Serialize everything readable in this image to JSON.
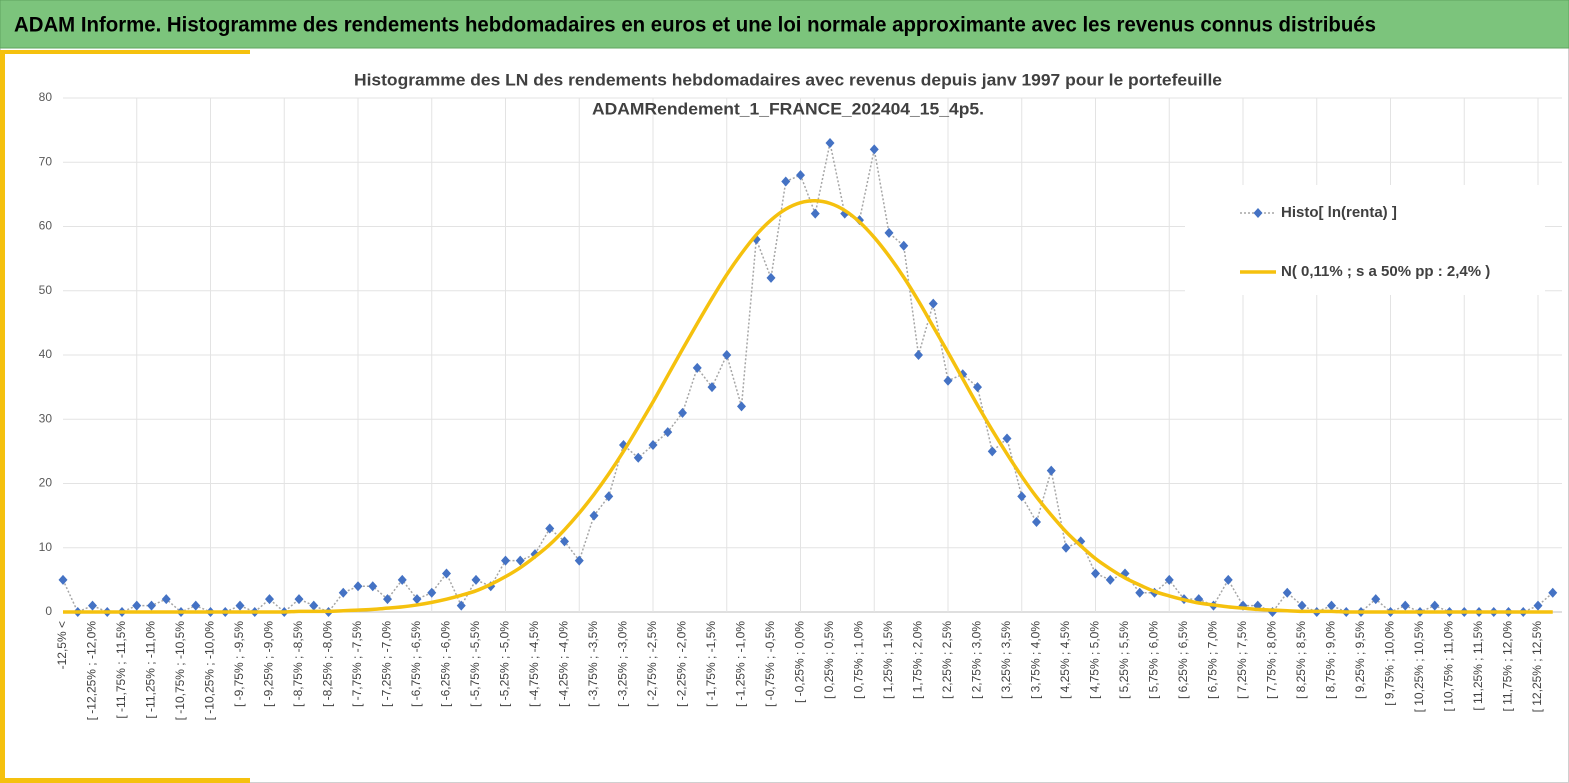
{
  "header": {
    "title": "ADAM Informe. Histogramme des rendements hebdomadaires en euros et une loi normale approximante avec les revenus connus distribués"
  },
  "chart_data": {
    "type": "line",
    "title": [
      "Histogramme des LN des rendements hebdomadaires avec revenus depuis janv 1997 pour le portefeuille",
      "ADAMRendement_1_FRANCE_202404_15_4p5."
    ],
    "categories": [
      "-12,5% <",
      null,
      "[ -12,25% ; -12,0%",
      null,
      "[ -11,75% ; -11,5%",
      null,
      "[ -11,25% ; -11,0%",
      null,
      "[ -10,75% ; -10,5%",
      null,
      "[ -10,25% ; -10,0%",
      null,
      "[ -9,75% ; -9,5%",
      null,
      "[ -9,25% ; -9,0%",
      null,
      "[ -8,75% ; -8,5%",
      null,
      "[ -8,25% ; -8,0%",
      null,
      "[ -7,75% ; -7,5%",
      null,
      "[ -7,25% ; -7,0%",
      null,
      "[ -6,75% ; -6,5%",
      null,
      "[ -6,25% ; -6,0%",
      null,
      "[ -5,75% ; -5,5%",
      null,
      "[ -5,25% ; -5,0%",
      null,
      "[ -4,75% ; -4,5%",
      null,
      "[ -4,25% ; -4,0%",
      null,
      "[ -3,75% ; -3,5%",
      null,
      "[ -3,25% ; -3,0%",
      null,
      "[ -2,75% ; -2,5%",
      null,
      "[ -2,25% ; -2,0%",
      null,
      "[ -1,75% ; -1,5%",
      null,
      "[ -1,25% ; -1,0%",
      null,
      "[ -0,75% ; -0,5%",
      null,
      "[ -0,25% ; 0,0%",
      null,
      "[ 0,25% ; 0,5%",
      null,
      "[ 0,75% ; 1,0%",
      null,
      "[ 1,25% ; 1,5%",
      null,
      "[ 1,75% ; 2,0%",
      null,
      "[ 2,25% ; 2,5%",
      null,
      "[ 2,75% ; 3,0%",
      null,
      "[ 3,25% ; 3,5%",
      null,
      "[ 3,75% ; 4,0%",
      null,
      "[ 4,25% ; 4,5%",
      null,
      "[ 4,75% ; 5,0%",
      null,
      "[ 5,25% ; 5,5%",
      null,
      "[ 5,75% ; 6,0%",
      null,
      "[ 6,25% ; 6,5%",
      null,
      "[ 6,75% ; 7,0%",
      null,
      "[ 7,25% ; 7,5%",
      null,
      "[ 7,75% ; 8,0%",
      null,
      "[ 8,25% ; 8,5%",
      null,
      "[ 8,75% ; 9,0%",
      null,
      "[ 9,25% ; 9,5%",
      null,
      "[ 9,75% ; 10,0%",
      null,
      "[ 10,25% ; 10,5%",
      null,
      "[ 10,75% ; 11,0%",
      null,
      "[ 11,25% ; 11,5%",
      null,
      "[ 11,75% ; 12,0%",
      null,
      "[ 12,25% ; 12,5%",
      null
    ],
    "series": [
      {
        "name": "Histo[ ln(renta) ]",
        "color": "#4472c4",
        "line_color": "#a6a6a6",
        "values": [
          5,
          0,
          1,
          0,
          0,
          1,
          1,
          2,
          0,
          1,
          0,
          0,
          1,
          0,
          2,
          0,
          2,
          1,
          0,
          3,
          4,
          4,
          2,
          5,
          2,
          3,
          6,
          1,
          5,
          4,
          8,
          8,
          9,
          13,
          11,
          8,
          15,
          18,
          26,
          24,
          26,
          28,
          31,
          38,
          35,
          40,
          32,
          58,
          52,
          67,
          68,
          62,
          73,
          62,
          61,
          72,
          59,
          57,
          40,
          48,
          36,
          37,
          35,
          25,
          27,
          18,
          14,
          22,
          10,
          11,
          6,
          5,
          6,
          3,
          3,
          5,
          2,
          2,
          1,
          5,
          1,
          1,
          0,
          3,
          1,
          0,
          1,
          0,
          0,
          2,
          0,
          1,
          0,
          1,
          0,
          0,
          0,
          0,
          0,
          0,
          1,
          3
        ]
      },
      {
        "name": "N( 0,11% ; s a 50% pp : 2,4% )",
        "color": "#f5c10e",
        "smooth": true,
        "values": [
          0,
          0,
          0,
          0,
          0,
          0,
          0,
          0,
          0,
          0,
          0,
          0,
          0,
          0,
          0,
          0,
          0.1,
          0.1,
          0.1,
          0.2,
          0.3,
          0.4,
          0.6,
          0.8,
          1.1,
          1.5,
          2.0,
          2.6,
          3.3,
          4.3,
          5.5,
          6.9,
          8.6,
          10.5,
          12.8,
          15.4,
          18.3,
          21.5,
          25.0,
          28.8,
          32.7,
          36.8,
          40.9,
          44.9,
          48.8,
          52.5,
          55.8,
          58.7,
          61.0,
          62.7,
          63.7,
          64.0,
          63.6,
          62.5,
          60.7,
          58.3,
          55.4,
          52.1,
          48.4,
          44.4,
          40.4,
          36.3,
          32.2,
          28.3,
          24.6,
          21.1,
          17.9,
          15.1,
          12.5,
          10.3,
          8.3,
          6.7,
          5.3,
          4.2,
          3.2,
          2.5,
          1.9,
          1.4,
          1.1,
          0.8,
          0.6,
          0.4,
          0.3,
          0.2,
          0.1,
          0.1,
          0.1,
          0,
          0,
          0,
          0,
          0,
          0,
          0,
          0,
          0,
          0,
          0,
          0,
          0,
          0,
          0
        ]
      }
    ],
    "ylim": [
      0,
      80
    ],
    "yticks": [
      0,
      10,
      20,
      30,
      40,
      50,
      60,
      70,
      80
    ],
    "grid": true,
    "legend": "right"
  }
}
